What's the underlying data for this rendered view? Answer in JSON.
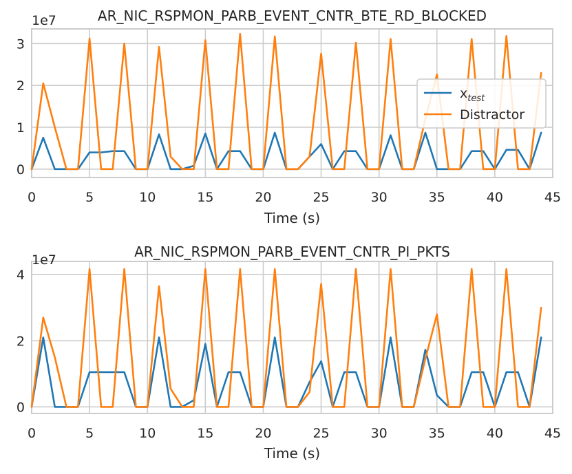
{
  "chart_data": [
    {
      "type": "line",
      "title": "AR_NIC_RSPMON_PARB_EVENT_CNTR_BTE_RD_BLOCKED",
      "xlabel": "Time (s)",
      "ylabel": "",
      "offset_label": "1e7",
      "xlim": [
        0,
        45
      ],
      "ylim": [
        -0.2,
        3.35
      ],
      "xticks": [
        0,
        5,
        10,
        15,
        20,
        25,
        30,
        35,
        40,
        45
      ],
      "yticks": [
        0,
        1,
        2,
        3
      ],
      "grid": true,
      "legend_position": "center-right",
      "x": [
        0,
        1,
        2,
        3,
        4,
        5,
        6,
        7,
        8,
        9,
        10,
        11,
        12,
        13,
        14,
        15,
        16,
        17,
        18,
        19,
        20,
        21,
        22,
        23,
        24,
        25,
        26,
        27,
        28,
        29,
        30,
        31,
        32,
        33,
        34,
        35,
        36,
        37,
        38,
        39,
        40,
        41,
        42,
        43,
        44
      ],
      "series": [
        {
          "name": "x_test",
          "legend_main": "x",
          "legend_sub": "test",
          "color": "#1f77b4",
          "values": [
            0,
            0.75,
            0,
            0,
            0,
            0.4,
            0.4,
            0.43,
            0.43,
            0,
            0,
            0.83,
            0,
            0,
            0.08,
            0.85,
            0,
            0.43,
            0.43,
            0,
            0,
            0.87,
            0,
            0,
            0.3,
            0.6,
            0,
            0.43,
            0.43,
            0,
            0,
            0.81,
            0,
            0,
            0.87,
            0,
            0,
            0,
            0.43,
            0.43,
            0,
            0.46,
            0.46,
            0,
            0.87
          ]
        },
        {
          "name": "Distractor",
          "legend_main": "Distractor",
          "legend_sub": "",
          "color": "#ff7f0e",
          "values": [
            0,
            2.05,
            1,
            0,
            0,
            3.12,
            0,
            0,
            3,
            0,
            0,
            2.92,
            0.3,
            0,
            0,
            3.08,
            0,
            0,
            3.23,
            0,
            0,
            3.17,
            0,
            0,
            0.3,
            2.76,
            0,
            0,
            3.02,
            0,
            0,
            3.11,
            0,
            0,
            1.2,
            2.26,
            0,
            0,
            3.11,
            0,
            0,
            3.18,
            0,
            0,
            2.3
          ]
        }
      ]
    },
    {
      "type": "line",
      "title": "AR_NIC_RSPMON_PARB_EVENT_CNTR_PI_PKTS",
      "xlabel": "Time (s)",
      "ylabel": "",
      "offset_label": "1e7",
      "xlim": [
        0,
        45
      ],
      "ylim": [
        -0.2,
        4.4
      ],
      "xticks": [
        0,
        5,
        10,
        15,
        20,
        25,
        30,
        35,
        40,
        45
      ],
      "yticks": [
        0,
        2,
        4
      ],
      "grid": true,
      "legend_position": "none",
      "x": [
        0,
        1,
        2,
        3,
        4,
        5,
        6,
        7,
        8,
        9,
        10,
        11,
        12,
        13,
        14,
        15,
        16,
        17,
        18,
        19,
        20,
        21,
        22,
        23,
        24,
        25,
        26,
        27,
        28,
        29,
        30,
        31,
        32,
        33,
        34,
        35,
        36,
        37,
        38,
        39,
        40,
        41,
        42,
        43,
        44
      ],
      "series": [
        {
          "name": "x_test",
          "legend_main": "x",
          "legend_sub": "test",
          "color": "#1f77b4",
          "values": [
            0,
            2.1,
            0,
            0,
            0,
            1.05,
            1.05,
            1.05,
            1.05,
            0,
            0,
            2.1,
            0,
            0,
            0.2,
            1.9,
            0,
            1.05,
            1.05,
            0,
            0,
            2.1,
            0,
            0,
            0.75,
            1.38,
            0,
            1.05,
            1.05,
            0,
            0,
            2.1,
            0,
            0,
            1.73,
            0.35,
            0,
            0,
            1.05,
            1.05,
            0,
            1.05,
            1.05,
            0,
            2.1
          ]
        },
        {
          "name": "Distractor",
          "legend_main": "Distractor",
          "legend_sub": "",
          "color": "#ff7f0e",
          "values": [
            0,
            2.7,
            1.5,
            0,
            0,
            4.17,
            0,
            0,
            4.17,
            0,
            0,
            3.65,
            0.55,
            0,
            0,
            4.17,
            0,
            0,
            4.17,
            0,
            0,
            4.17,
            0,
            0,
            0.45,
            3.72,
            0,
            0,
            4.17,
            0,
            0,
            4.17,
            0,
            0,
            1.45,
            2.8,
            0,
            0,
            4.17,
            0,
            0,
            4.17,
            0,
            0,
            3
          ]
        }
      ]
    }
  ]
}
